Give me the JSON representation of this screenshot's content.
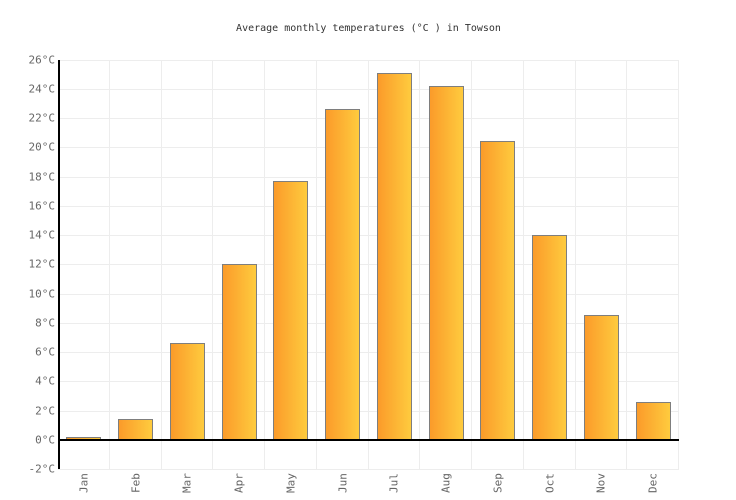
{
  "chart_data": {
    "type": "bar",
    "title": "Average monthly temperatures (°C ) in Towson",
    "categories": [
      "Jan",
      "Feb",
      "Mar",
      "Apr",
      "May",
      "Jun",
      "Jul",
      "Aug",
      "Sep",
      "Oct",
      "Nov",
      "Dec"
    ],
    "values": [
      0.1,
      1.4,
      6.6,
      12.0,
      17.7,
      22.6,
      25.1,
      24.2,
      20.4,
      14.0,
      8.5,
      2.6
    ],
    "unit": "°C",
    "xlabel": "",
    "ylabel": "",
    "ylim": [
      -2,
      26
    ],
    "ytick_step": 2,
    "ytick_labels": [
      "-2°C",
      "0°C",
      "2°C",
      "4°C",
      "6°C",
      "8°C",
      "10°C",
      "12°C",
      "14°C",
      "16°C",
      "18°C",
      "20°C",
      "22°C",
      "24°C",
      "26°C"
    ],
    "grid": true,
    "legend": "none",
    "colors": {
      "bar_gradient_left": "#FB9B2A",
      "bar_gradient_right": "#FECB3E",
      "bar_border": "#7E7E7E",
      "axis": "#000000",
      "label": "#666666",
      "title": "#333333",
      "gridline": "#EDEDED"
    }
  }
}
